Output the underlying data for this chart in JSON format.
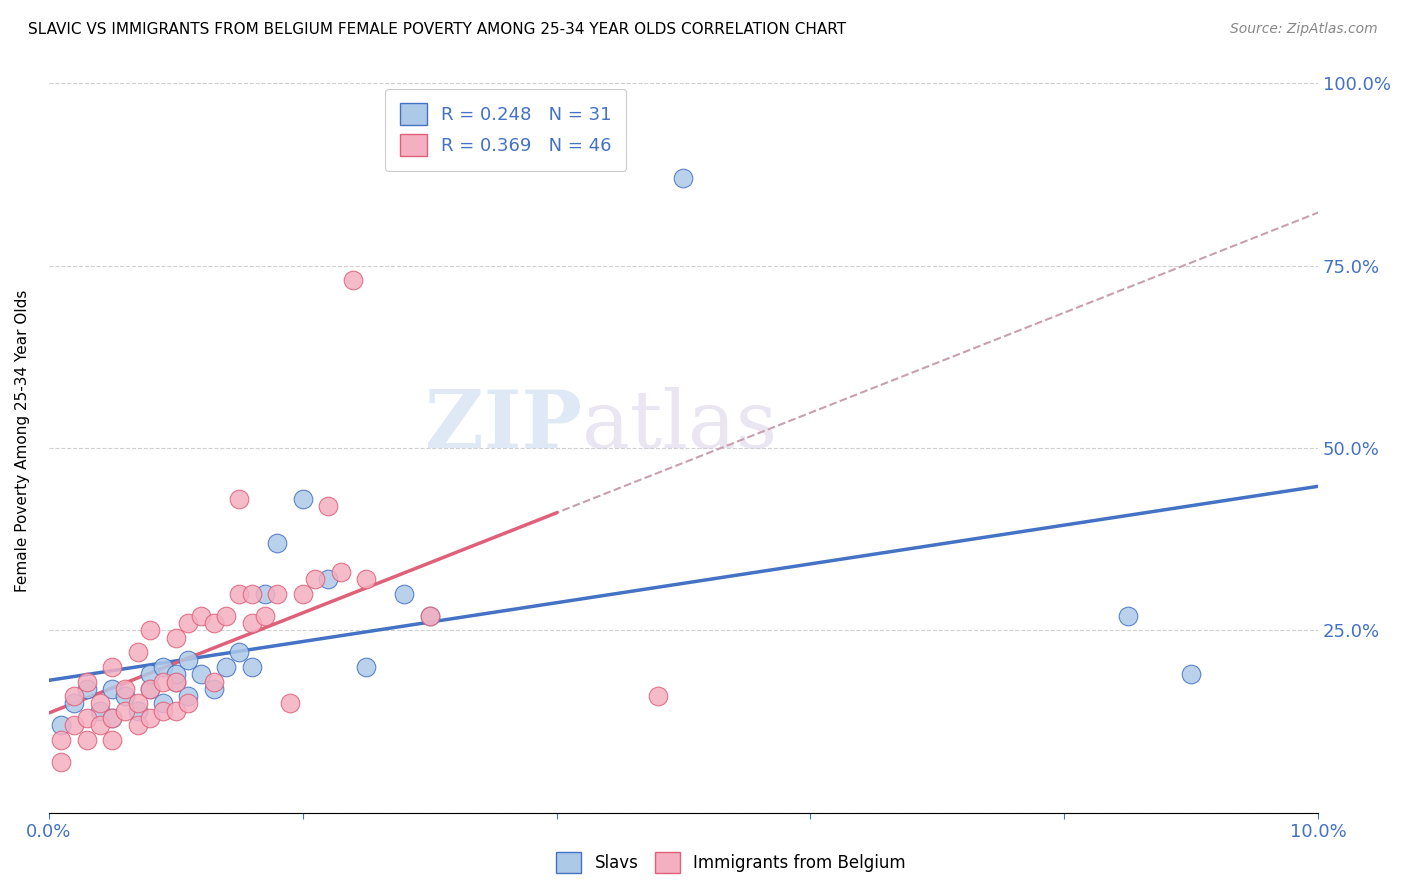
{
  "title": "SLAVIC VS IMMIGRANTS FROM BELGIUM FEMALE POVERTY AMONG 25-34 YEAR OLDS CORRELATION CHART",
  "source": "Source: ZipAtlas.com",
  "ylabel": "Female Poverty Among 25-34 Year Olds",
  "y_tick_labels": [
    "",
    "25.0%",
    "50.0%",
    "75.0%",
    "100.0%"
  ],
  "y_tick_values": [
    0,
    0.25,
    0.5,
    0.75,
    1.0
  ],
  "x_tick_values": [
    0,
    0.02,
    0.04,
    0.06,
    0.08,
    0.1
  ],
  "slavs_R": 0.248,
  "slavs_N": 31,
  "belgium_R": 0.369,
  "belgium_N": 46,
  "slavs_color": "#adc9e8",
  "slavs_line_color": "#4472c4",
  "belgium_color": "#f4afc0",
  "belgium_line_color": "#e0607a",
  "dashed_line_color": "#c8a0b0",
  "background_color": "#ffffff",
  "grid_color": "#d0d0d0",
  "slavs_x": [
    0.001,
    0.002,
    0.003,
    0.004,
    0.005,
    0.005,
    0.006,
    0.007,
    0.008,
    0.008,
    0.009,
    0.009,
    0.01,
    0.01,
    0.011,
    0.011,
    0.012,
    0.013,
    0.014,
    0.015,
    0.016,
    0.017,
    0.018,
    0.02,
    0.022,
    0.025,
    0.028,
    0.03,
    0.05,
    0.085,
    0.09
  ],
  "slavs_y": [
    0.12,
    0.15,
    0.17,
    0.14,
    0.13,
    0.17,
    0.16,
    0.14,
    0.17,
    0.19,
    0.15,
    0.2,
    0.18,
    0.19,
    0.16,
    0.21,
    0.19,
    0.17,
    0.2,
    0.22,
    0.2,
    0.3,
    0.37,
    0.43,
    0.32,
    0.2,
    0.3,
    0.27,
    0.87,
    0.27,
    0.19
  ],
  "belgium_x": [
    0.001,
    0.001,
    0.002,
    0.002,
    0.003,
    0.003,
    0.003,
    0.004,
    0.004,
    0.005,
    0.005,
    0.005,
    0.006,
    0.006,
    0.007,
    0.007,
    0.007,
    0.008,
    0.008,
    0.008,
    0.009,
    0.009,
    0.01,
    0.01,
    0.01,
    0.011,
    0.011,
    0.012,
    0.013,
    0.013,
    0.014,
    0.015,
    0.015,
    0.016,
    0.016,
    0.017,
    0.018,
    0.019,
    0.02,
    0.021,
    0.022,
    0.023,
    0.024,
    0.025,
    0.03,
    0.048
  ],
  "belgium_y": [
    0.07,
    0.1,
    0.12,
    0.16,
    0.1,
    0.13,
    0.18,
    0.12,
    0.15,
    0.1,
    0.13,
    0.2,
    0.14,
    0.17,
    0.12,
    0.15,
    0.22,
    0.13,
    0.17,
    0.25,
    0.14,
    0.18,
    0.14,
    0.18,
    0.24,
    0.15,
    0.26,
    0.27,
    0.18,
    0.26,
    0.27,
    0.3,
    0.43,
    0.26,
    0.3,
    0.27,
    0.3,
    0.15,
    0.3,
    0.32,
    0.42,
    0.33,
    0.73,
    0.32,
    0.27,
    0.16
  ],
  "watermark_top": "ZIP",
  "watermark_bottom": "atlas",
  "legend_fontsize": 13,
  "title_fontsize": 11
}
